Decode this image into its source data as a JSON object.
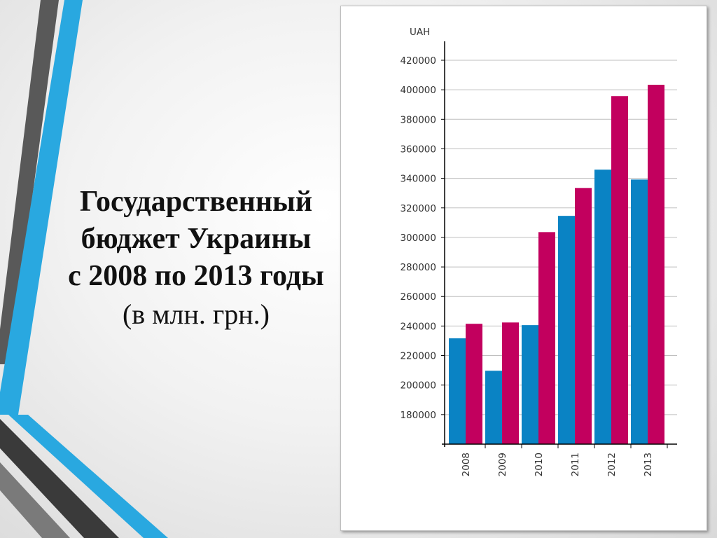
{
  "slide": {
    "title_lines": [
      "Государственный",
      "бюджет Украины",
      "с 2008 по 2013 годы"
    ],
    "subtitle": "(в млн. грн.)"
  },
  "chart_data": {
    "type": "bar",
    "unit_label": "UAH",
    "categories": [
      "2008",
      "2009",
      "2010",
      "2011",
      "2012",
      "2013"
    ],
    "series": [
      {
        "values": [
          231700,
          209700,
          240600,
          314600,
          345900,
          339200
        ],
        "color": "#0a83c4"
      },
      {
        "values": [
          241500,
          242400,
          303600,
          333500,
          395700,
          403400
        ],
        "color": "#c2005e"
      }
    ],
    "y_ticks": [
      180000,
      200000,
      220000,
      240000,
      260000,
      280000,
      300000,
      320000,
      340000,
      360000,
      380000,
      400000,
      420000
    ],
    "ylim": [
      160000,
      420000
    ],
    "grid": true,
    "legend": "none",
    "colors": {
      "axis": "#000000",
      "grid": "#bfbfbf"
    }
  }
}
